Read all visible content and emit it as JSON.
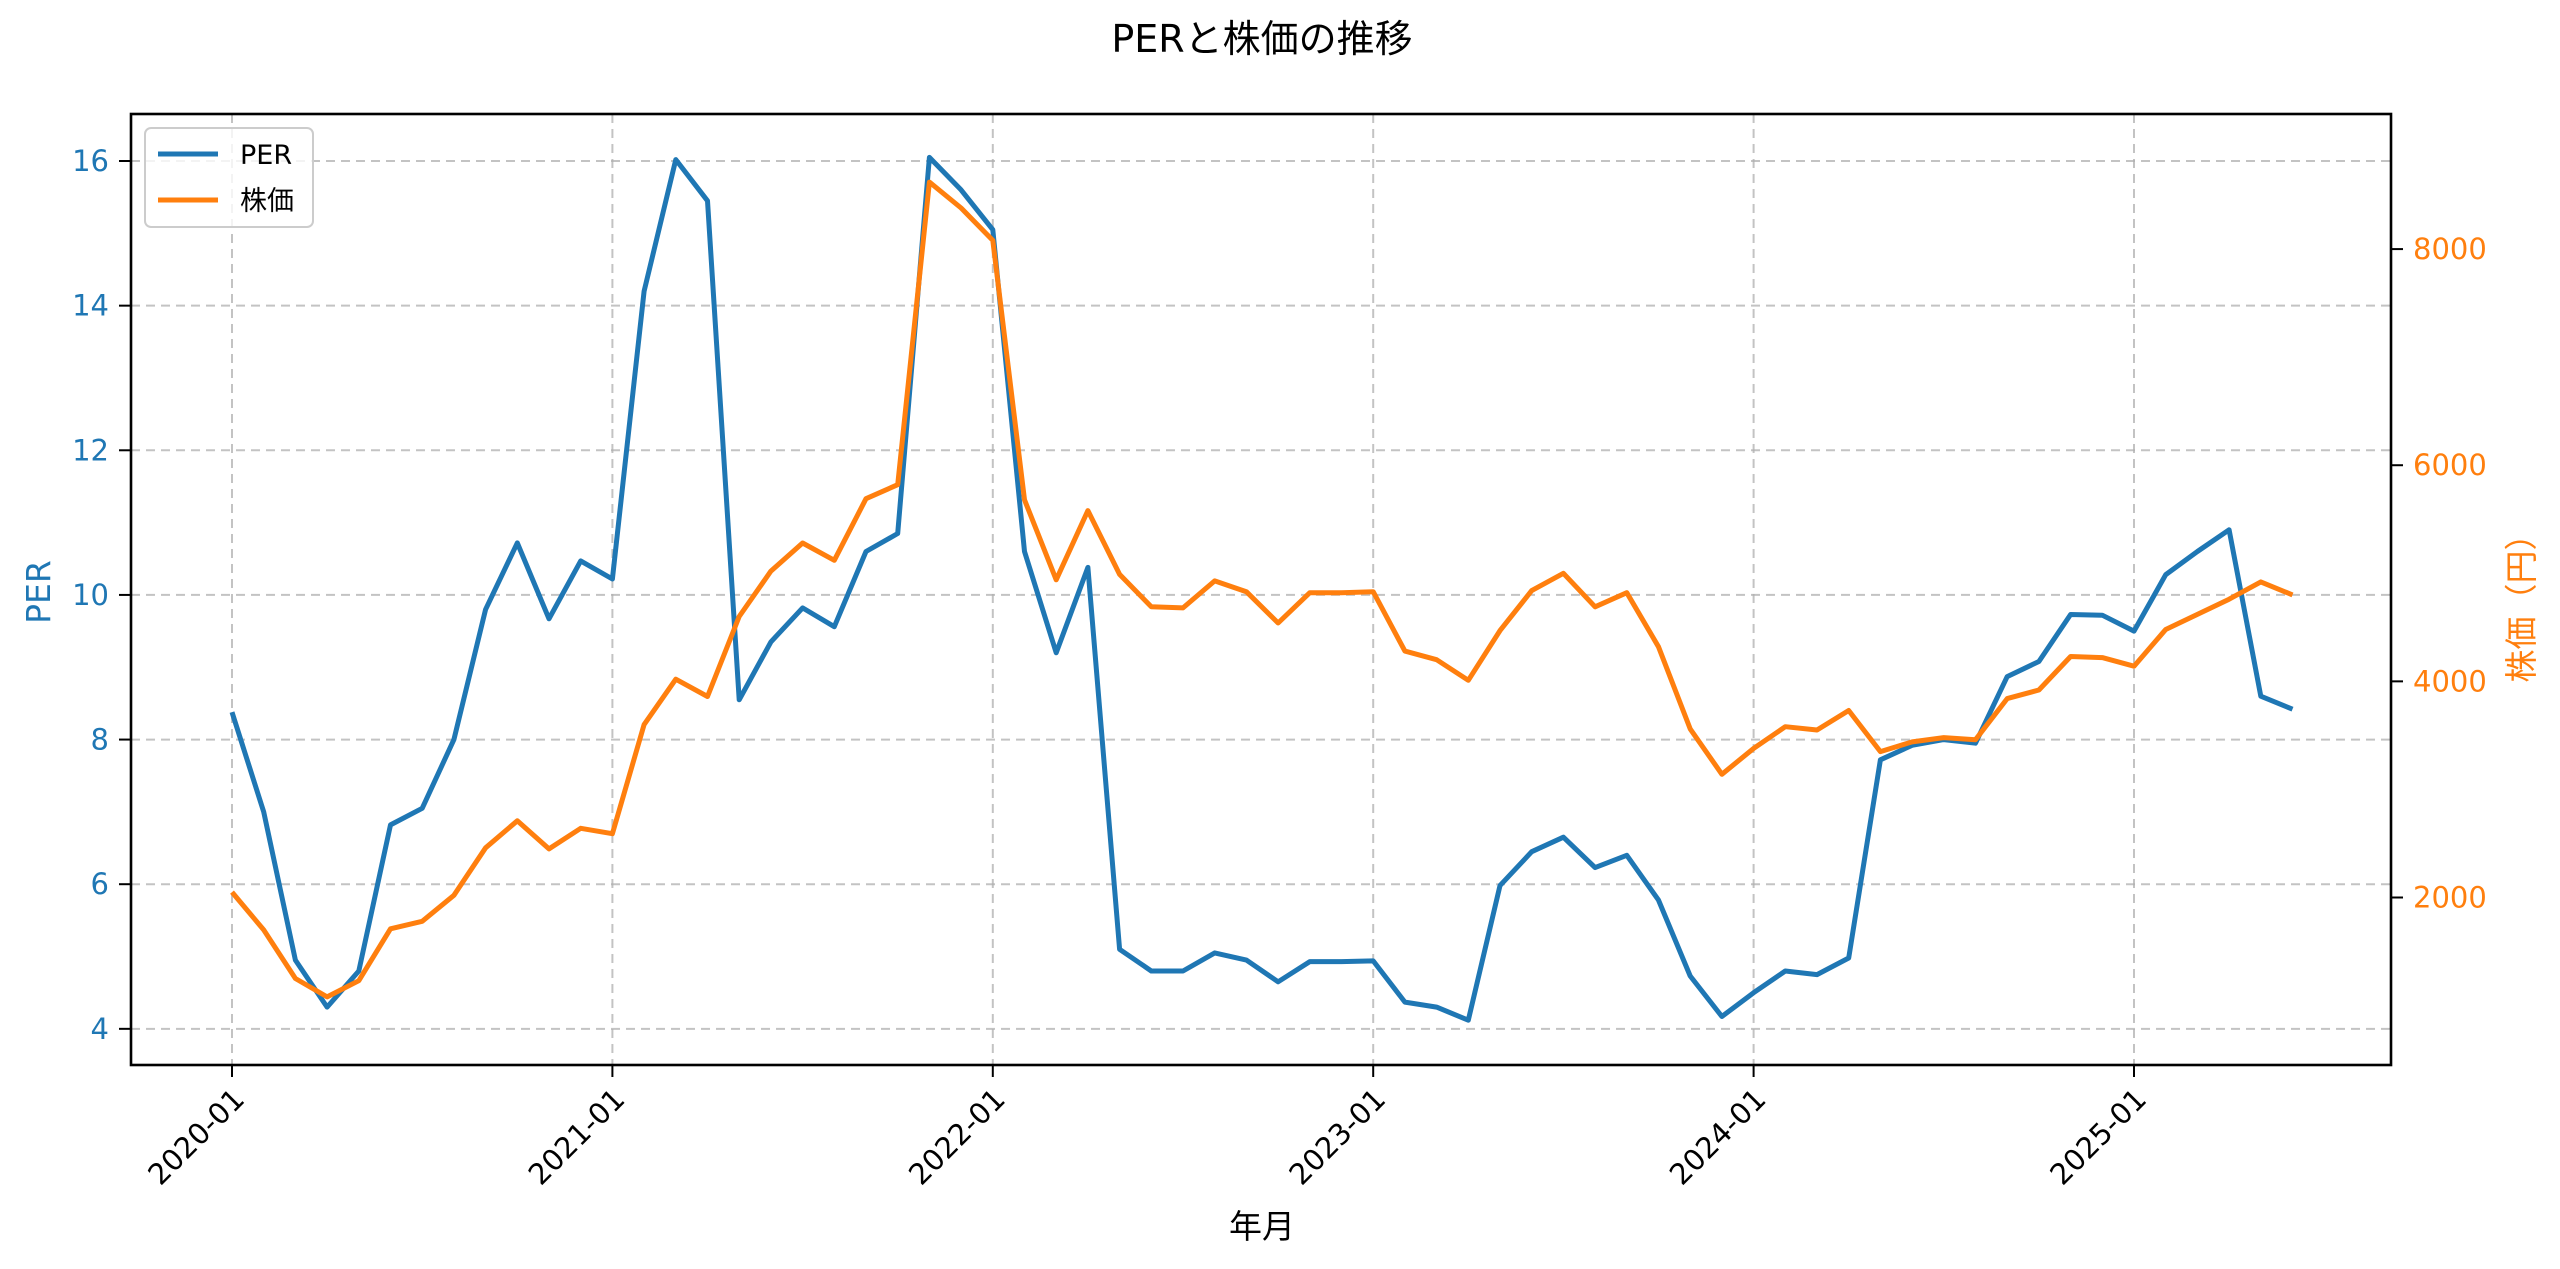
{
  "chart_data": {
    "type": "line",
    "title": "PERと株価の推移",
    "xlabel": "年月",
    "ylabel_left": "PER",
    "ylabel_right": "株価（円）",
    "colors": {
      "PER": "#1f77b4",
      "price": "#ff7f0e",
      "axis": "#000000",
      "grid": "#b0b0b0"
    },
    "x_ticks": [
      "2020-01",
      "2021-01",
      "2022-01",
      "2023-01",
      "2024-01",
      "2025-01"
    ],
    "y_left_ticks": [
      4,
      6,
      8,
      10,
      12,
      14,
      16
    ],
    "y_right_ticks": [
      2000,
      4000,
      6000,
      8000
    ],
    "ylim_left": [
      3.5,
      16.65
    ],
    "ylim_right": [
      450,
      9250
    ],
    "grid": true,
    "legend_position": "upper left",
    "x": [
      "2020-01",
      "2020-02",
      "2020-03",
      "2020-04",
      "2020-05",
      "2020-06",
      "2020-07",
      "2020-08",
      "2020-09",
      "2020-10",
      "2020-11",
      "2020-12",
      "2021-01",
      "2021-02",
      "2021-03",
      "2021-04",
      "2021-05",
      "2021-06",
      "2021-07",
      "2021-08",
      "2021-09",
      "2021-10",
      "2021-11",
      "2021-12",
      "2022-01",
      "2022-02",
      "2022-03",
      "2022-04",
      "2022-05",
      "2022-06",
      "2022-07",
      "2022-08",
      "2022-09",
      "2022-10",
      "2022-11",
      "2022-12",
      "2023-01",
      "2023-02",
      "2023-03",
      "2023-04",
      "2023-05",
      "2023-06",
      "2023-07",
      "2023-08",
      "2023-09",
      "2023-10",
      "2023-11",
      "2023-12",
      "2024-01",
      "2024-02",
      "2024-03",
      "2024-04",
      "2024-05",
      "2024-06",
      "2024-07",
      "2024-08",
      "2024-09",
      "2024-10",
      "2024-11",
      "2024-12",
      "2025-01",
      "2025-02",
      "2025-03",
      "2025-04",
      "2025-05",
      "2025-06"
    ],
    "series": [
      {
        "name": "PER",
        "axis": "left",
        "values": [
          8.38,
          7.0,
          4.95,
          4.3,
          4.8,
          6.82,
          7.05,
          8.0,
          9.8,
          10.72,
          9.67,
          10.47,
          10.22,
          14.2,
          16.02,
          15.45,
          8.55,
          9.35,
          9.82,
          9.56,
          10.6,
          10.85,
          16.05,
          15.6,
          15.05,
          10.6,
          9.2,
          10.38,
          5.1,
          4.8,
          4.8,
          5.05,
          4.95,
          4.65,
          4.93,
          4.93,
          4.94,
          4.37,
          4.3,
          4.12,
          5.98,
          6.45,
          6.65,
          6.23,
          6.4,
          5.78,
          4.73,
          4.17,
          4.5,
          4.8,
          4.75,
          4.98,
          7.72,
          7.92,
          8.0,
          7.95,
          8.87,
          9.08,
          9.73,
          9.72,
          9.5,
          10.28,
          10.6,
          10.9,
          8.6,
          8.42
        ]
      },
      {
        "name": "株価",
        "axis": "right",
        "values": [
          2050,
          1700,
          1250,
          1080,
          1230,
          1710,
          1780,
          2020,
          2460,
          2710,
          2450,
          2640,
          2590,
          3600,
          4020,
          3860,
          4600,
          5020,
          5280,
          5120,
          5690,
          5820,
          8620,
          8380,
          8080,
          5680,
          4940,
          5580,
          4990,
          4690,
          4680,
          4930,
          4830,
          4540,
          4820,
          4820,
          4830,
          4280,
          4200,
          4010,
          4470,
          4840,
          5000,
          4690,
          4820,
          4320,
          3560,
          3140,
          3380,
          3580,
          3550,
          3730,
          3350,
          3440,
          3480,
          3460,
          3840,
          3920,
          4230,
          4220,
          4140,
          4480,
          4620,
          4760,
          4920,
          4800
        ]
      }
    ]
  }
}
